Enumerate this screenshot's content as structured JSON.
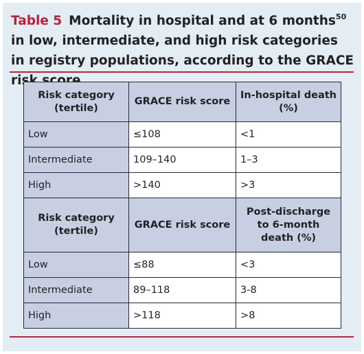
{
  "caption": {
    "label": "Table 5",
    "text_before_sup": "Mortality in hospital and at 6 months",
    "sup": "50",
    "text_after_sup": " in low, intermediate, and high risk categories in registry populations, according to the GRACE risk score"
  },
  "table": {
    "section1": {
      "headers": [
        "Risk category (tertile)",
        "GRACE risk score",
        "In-hospital death (%)"
      ],
      "rows": [
        {
          "category": "Low",
          "score": "≤108",
          "death": "<1"
        },
        {
          "category": "Intermediate",
          "score": "109–140",
          "death": "1–3"
        },
        {
          "category": "High",
          "score": ">140",
          "death": ">3"
        }
      ]
    },
    "section2": {
      "headers": [
        "Risk category (tertile)",
        "GRACE risk score",
        "Post-discharge to 6-month death (%)"
      ],
      "rows": [
        {
          "category": "Low",
          "score": "≤88",
          "death": "<3"
        },
        {
          "category": "Intermediate",
          "score": "89–118",
          "death": "3-8"
        },
        {
          "category": "High",
          "score": ">118",
          "death": ">8"
        }
      ]
    }
  },
  "colors": {
    "accent": "#c21f3a",
    "panel_bg": "#e4edf4",
    "header_bg": "#c9cfe3"
  }
}
